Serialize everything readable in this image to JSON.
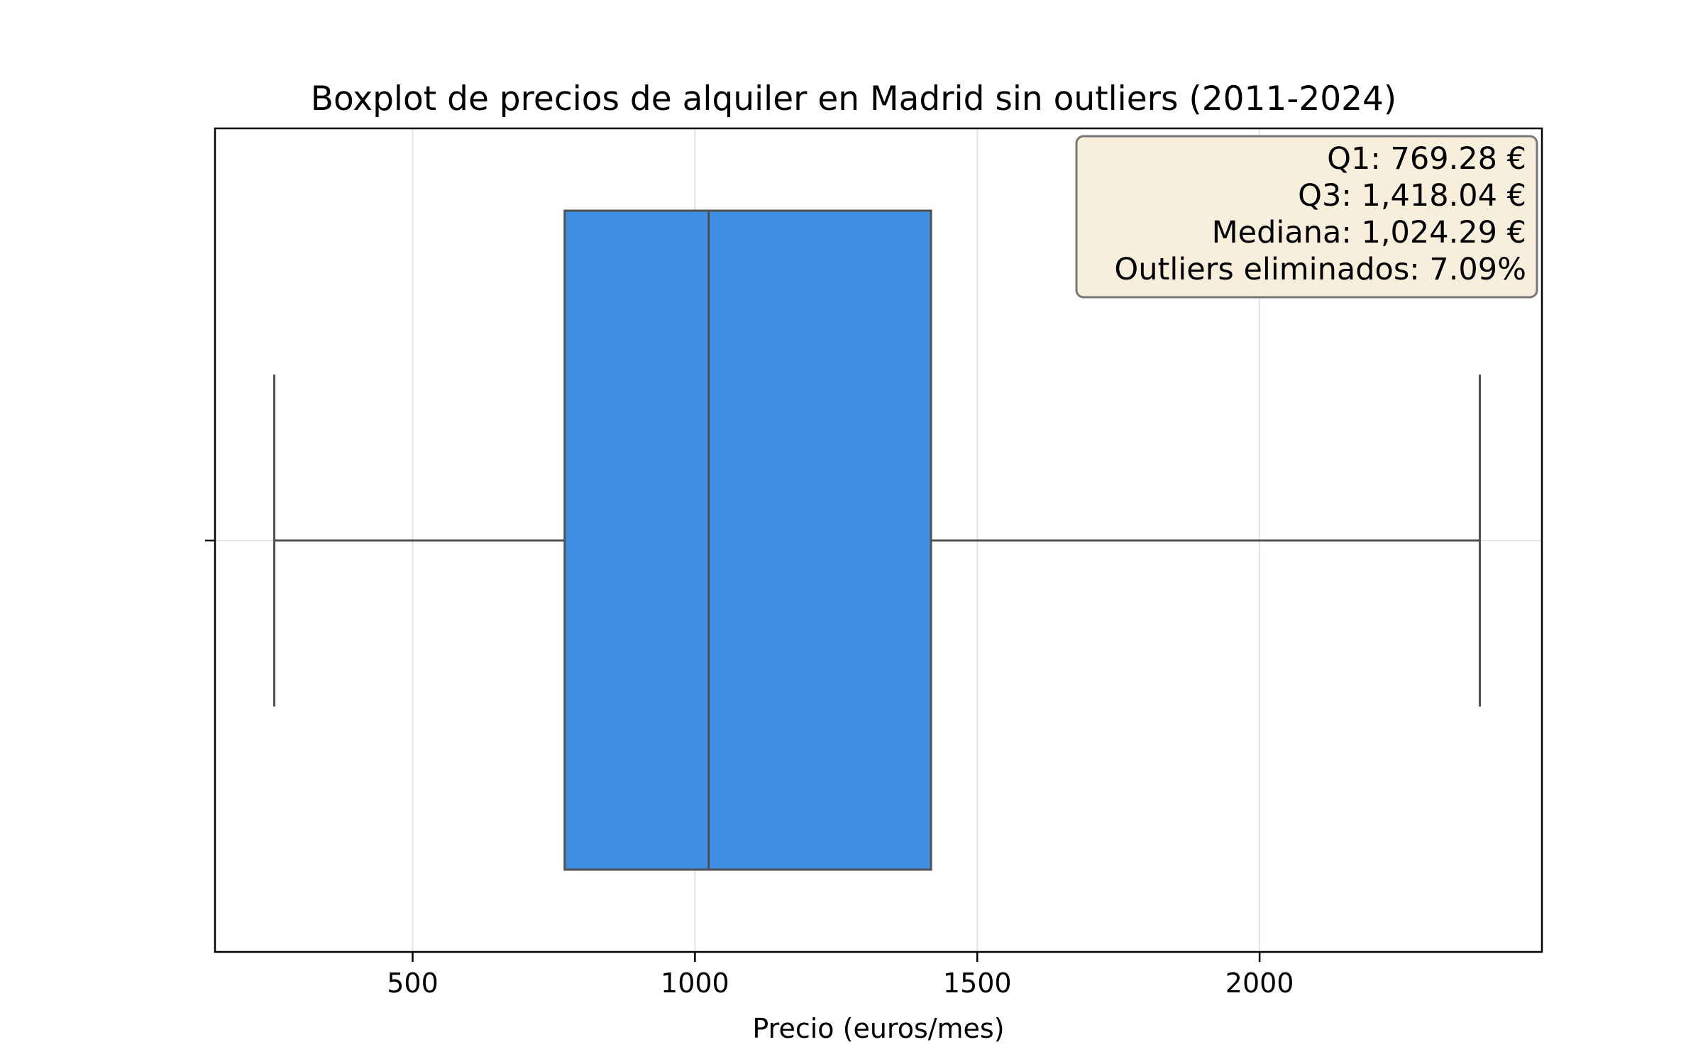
{
  "chart_data": {
    "type": "boxplot",
    "title": "Boxplot de precios de alquiler en Madrid sin outliers (2011-2024)",
    "xlabel": "Precio (euros/mes)",
    "ylabel": "",
    "xlim": [
      150,
      2500
    ],
    "xticks": [
      500,
      1000,
      1500,
      2000
    ],
    "tick_labels": [
      "500",
      "1000",
      "1500",
      "2000"
    ],
    "grid": true,
    "box": {
      "whisker_low": 255,
      "q1": 769.28,
      "median": 1024.29,
      "q3": 1418.04,
      "whisker_high": 2390
    },
    "box_color": "#3c8fe2",
    "line_color": "#505050",
    "annotation": {
      "lines": [
        "Q1: 769.28 €",
        "Q3: 1,418.04 €",
        "Mediana: 1,024.29 €",
        "Outliers eliminados: 7.09%"
      ],
      "background": "#f7eedb",
      "border": "#777777"
    }
  }
}
